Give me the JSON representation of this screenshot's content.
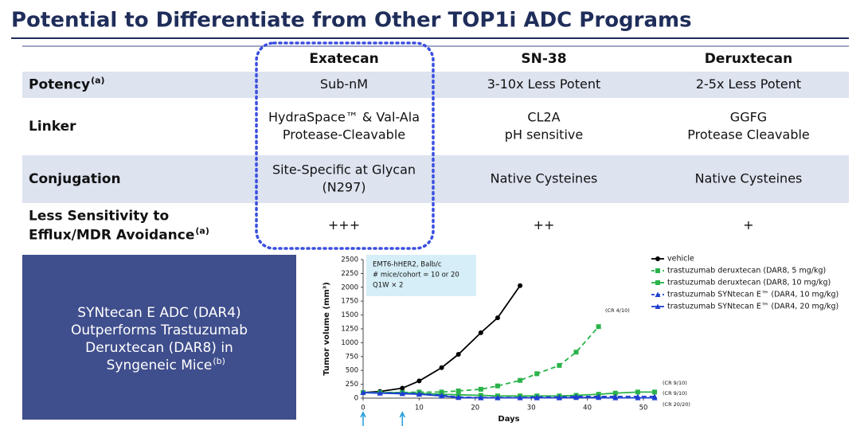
{
  "title": "Potential to Differentiate from Other TOP1i ADC Programs",
  "table": {
    "columns": [
      "Exatecan",
      "SN-38",
      "Deruxtecan"
    ],
    "rows": [
      {
        "label": [
          "Potency"
        ],
        "sup": "(a)",
        "cells": [
          [
            "Sub-nM"
          ],
          [
            "3-10x Less Potent"
          ],
          [
            "2-5x Less Potent"
          ]
        ]
      },
      {
        "label": [
          "Linker"
        ],
        "cells": [
          [
            "HydraSpace™ & Val-Ala",
            "Protease-Cleavable"
          ],
          [
            "CL2A",
            "pH sensitive"
          ],
          [
            "GGFG",
            "Protease Cleavable"
          ]
        ]
      },
      {
        "label": [
          "Conjugation"
        ],
        "cells": [
          [
            "Site-Specific at Glycan",
            "(N297)"
          ],
          [
            "Native Cysteines"
          ],
          [
            "Native Cysteines"
          ]
        ]
      },
      {
        "label": [
          "Less Sensitivity to",
          "Efflux/MDR Avoidance"
        ],
        "sup": "(a)",
        "cells": [
          [
            "+++"
          ],
          [
            "++"
          ],
          [
            "+"
          ]
        ]
      }
    ]
  },
  "callout": {
    "lines": [
      "SYNtecan E ADC (DAR4)",
      "Outperforms Trastuzumab",
      "Deruxtecan (DAR8) in",
      "Syngeneic Mice"
    ],
    "sup": "(b)"
  },
  "chart_data": {
    "type": "line",
    "ylabel": "Tumor volume (mm³)",
    "xlabel": "Days",
    "xlim": [
      0,
      52
    ],
    "xticks": [
      0,
      10,
      20,
      30,
      40,
      50
    ],
    "ylim": [
      0,
      2500
    ],
    "yticks": [
      0,
      250,
      500,
      750,
      1000,
      1250,
      1500,
      1750,
      2000,
      2250,
      2500
    ],
    "info": [
      "EMT6-hHER2, Balb/c",
      "# mice/cohort = 10 or 20",
      "Q1W × 2"
    ],
    "annotations": [
      "(CR 4/10)",
      "(CR 9/10)",
      "(CR 9/10)",
      "(CR 20/20)"
    ],
    "dose_days": [
      0,
      7
    ],
    "series": [
      {
        "name": "vehicle",
        "color": "#000000",
        "dash": false,
        "marker": "circle",
        "x": [
          0,
          3,
          7,
          10,
          14,
          17,
          21,
          24,
          28
        ],
        "values": [
          100,
          120,
          180,
          310,
          550,
          790,
          1180,
          1450,
          2030
        ]
      },
      {
        "name": "trastuzumab deruxtecan (DAR8, 5 mg/kg)",
        "color": "#2ab34a",
        "dash": true,
        "marker": "square",
        "x": [
          0,
          3,
          7,
          10,
          14,
          17,
          21,
          24,
          28,
          31,
          35,
          38,
          42
        ],
        "values": [
          100,
          100,
          100,
          110,
          110,
          130,
          160,
          220,
          320,
          440,
          590,
          830,
          1290
        ]
      },
      {
        "name": "trastuzumab deruxtecan (DAR8, 10 mg/kg)",
        "color": "#2ab34a",
        "dash": false,
        "marker": "square",
        "x": [
          0,
          3,
          7,
          10,
          14,
          17,
          21,
          24,
          28,
          31,
          35,
          38,
          42,
          45,
          49,
          52
        ],
        "values": [
          100,
          100,
          100,
          90,
          70,
          60,
          50,
          40,
          40,
          40,
          40,
          50,
          70,
          90,
          110,
          110
        ]
      },
      {
        "name": "trastuzumab SYNtecan E™ (DAR4, 10 mg/kg)",
        "color": "#1f3fd0",
        "dash": true,
        "marker": "triangle",
        "x": [
          0,
          3,
          7,
          10,
          14,
          17,
          21,
          24,
          28,
          31,
          35,
          38,
          42,
          45,
          49,
          52
        ],
        "values": [
          100,
          95,
          90,
          80,
          50,
          20,
          10,
          10,
          10,
          20,
          20,
          30,
          30,
          30,
          30,
          30
        ]
      },
      {
        "name": "trastuzumab SYNtecan E™ (DAR4, 20 mg/kg)",
        "color": "#1f3fd0",
        "dash": false,
        "marker": "triangle",
        "x": [
          0,
          3,
          7,
          10,
          14,
          17,
          21,
          24,
          28,
          31,
          35,
          38,
          42,
          45,
          49,
          52
        ],
        "values": [
          100,
          90,
          80,
          70,
          40,
          10,
          5,
          5,
          5,
          5,
          5,
          10,
          10,
          5,
          5,
          5
        ]
      }
    ]
  }
}
